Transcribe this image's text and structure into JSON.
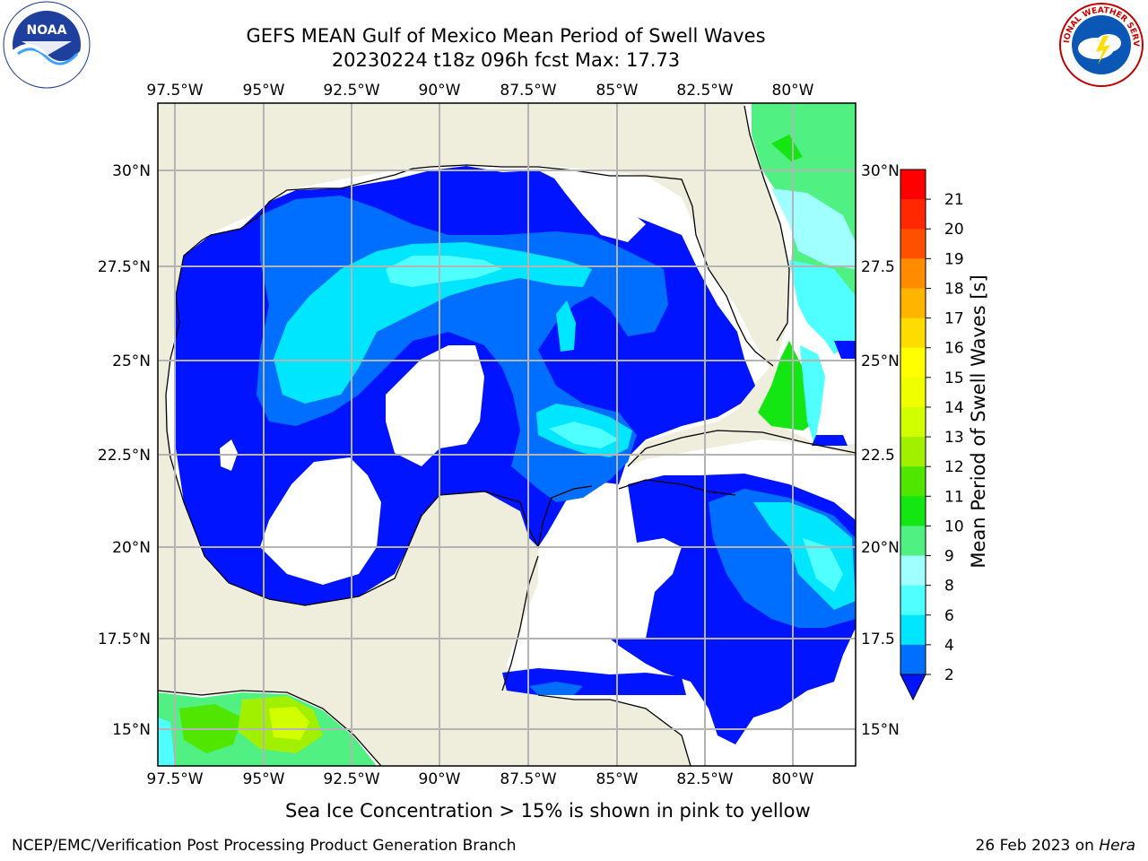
{
  "header": {
    "title_line1": "GEFS MEAN Gulf of Mexico Mean Period of Swell Waves",
    "title_line2": "20230224 t18z 096h fcst   Max: 17.73"
  },
  "logos": {
    "left": {
      "name": "NOAA",
      "ring_text": "NATIONAL OCEANIC AND ATMOSPHERIC ADMINISTRATION · U.S. DEPARTMENT OF COMMERCE"
    },
    "right": {
      "name": "NATIONAL WEATHER SERVICE"
    }
  },
  "map": {
    "lon_labels": [
      "97.5°W",
      "95°W",
      "92.5°W",
      "90°W",
      "87.5°W",
      "85°W",
      "82.5°W",
      "80°W"
    ],
    "lat_labels_left": [
      "30°N",
      "27.5°N",
      "25°N",
      "22.5°N",
      "20°N",
      "17.5°N",
      "15°N"
    ],
    "lat_labels_right": [
      "30°N",
      "27.5",
      "25°N",
      "22.5",
      "20°N",
      "17.5",
      "15°N"
    ],
    "land_color": "#efeedc",
    "grid_color": "#b4b4b4"
  },
  "colorbar": {
    "label": "Mean Period of Swell Waves [s]",
    "ticks": [
      "2",
      "4",
      "6",
      "8",
      "9",
      "10",
      "11",
      "12",
      "13",
      "14",
      "15",
      "16",
      "17",
      "18",
      "19",
      "20",
      "21"
    ],
    "colors": [
      "#0014ff",
      "#006eff",
      "#00e6ff",
      "#50ffff",
      "#a0ffff",
      "#50f082",
      "#14e614",
      "#50e600",
      "#a0f000",
      "#d2ff00",
      "#f0ff00",
      "#ffff00",
      "#ffdc00",
      "#ffb400",
      "#ff8c00",
      "#ff5000",
      "#ff2800",
      "#ff0000"
    ]
  },
  "caption": "Sea Ice Concentration > 15% is shown in pink to yellow",
  "footer": {
    "left": "NCEP/EMC/Verification Post Processing Product Generation Branch",
    "right_prefix": "26 Feb 2023 on ",
    "right_host": "Hera"
  }
}
